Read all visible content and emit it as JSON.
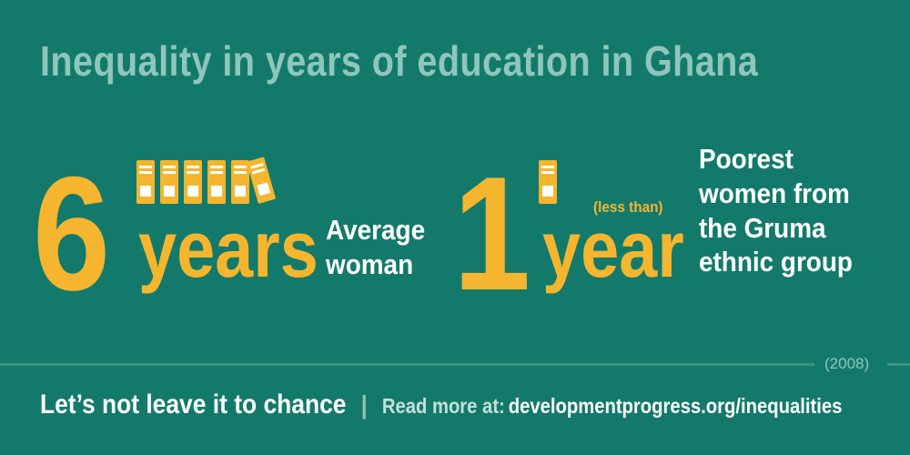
{
  "title": "Inequality in years of education in Ghana",
  "stat_average": {
    "number": "6",
    "unit": "years",
    "description_lines": [
      "Average",
      "woman"
    ],
    "book_count": 6
  },
  "stat_poorest": {
    "number": "1",
    "unit": "year",
    "qualifier": "(less than)",
    "description_lines": [
      "Poorest",
      "women from",
      "the Gruma",
      "ethnic group"
    ],
    "book_count": 1
  },
  "year_note": "(2008)",
  "footer": {
    "slogan": "Let’s not leave it to chance",
    "separator": "|",
    "read_more_label": "Read more at:",
    "url": "developmentprogress.org/inequalities"
  },
  "colors": {
    "background": "#137a6b",
    "accent": "#f5b52e",
    "title": "#8fc6bb",
    "text": "#ffffff"
  }
}
